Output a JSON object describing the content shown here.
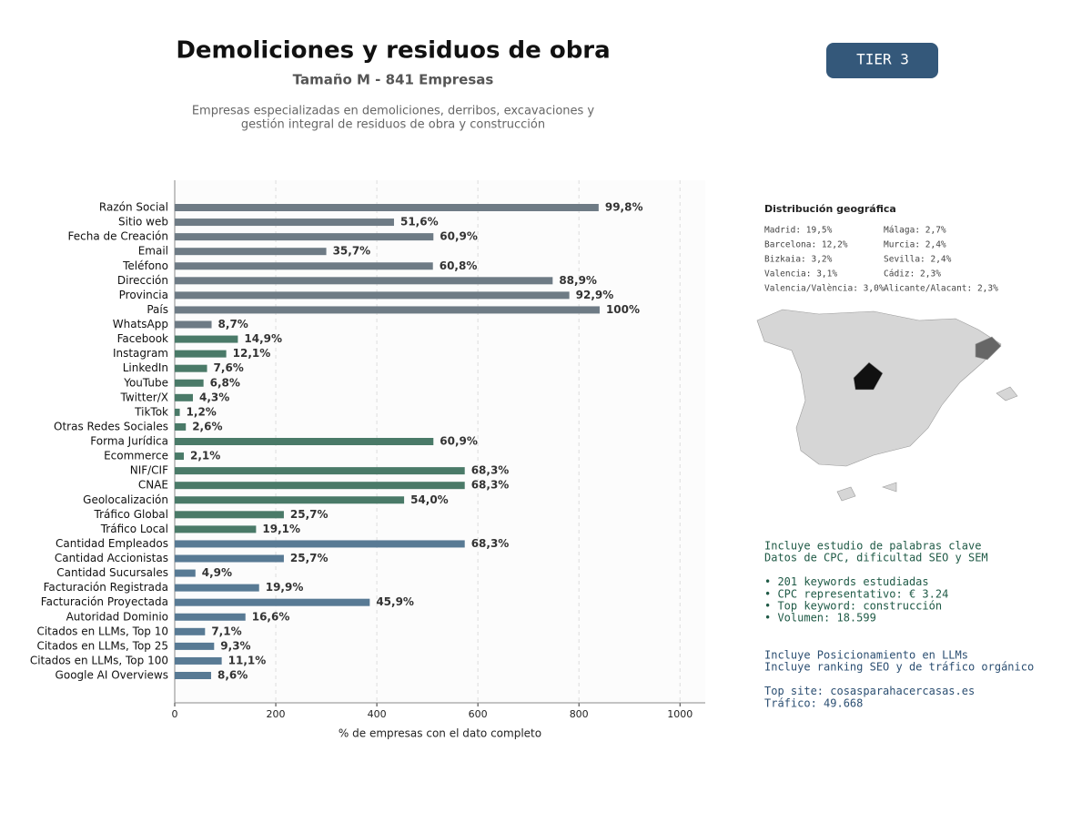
{
  "chart_data": {
    "type": "barh",
    "title": "Demoliciones y residuos de obra",
    "subtitle": "Tamaño M - 841 Empresas",
    "description": [
      "Empresas especializadas en demoliciones, derribos, excavaciones y",
      "gestión integral de residuos de obra y construcción"
    ],
    "badge": "TIER 3",
    "xlabel": "% de empresas con el dato completo",
    "xlim": [
      0,
      1050
    ],
    "xticks": [
      0,
      200,
      400,
      600,
      800,
      1000
    ],
    "grid": true,
    "categories": [
      "Razón Social",
      "Sitio web",
      "Fecha de Creación",
      "Email",
      "Teléfono",
      "Dirección",
      "Provincia",
      "País",
      "WhatsApp",
      "Facebook",
      "Instagram",
      "LinkedIn",
      "YouTube",
      "Twitter/X",
      "TikTok",
      "Otras Redes Sociales",
      "Forma Jurídica",
      "Ecommerce",
      "NIF/CIF",
      "CNAE",
      "Geolocalización",
      "Tráfico Global",
      "Tráfico Local",
      "Cantidad Empleados",
      "Cantidad Accionistas",
      "Cantidad Sucursales",
      "Facturación Registrada",
      "Facturación Proyectada",
      "Autoridad Dominio",
      "Citados en LLMs, Top 10",
      "Citados en LLMs, Top 25",
      "Citados en LLMs, Top 100",
      "Google AI Overviews"
    ],
    "values": [
      839,
      434,
      512,
      300,
      511,
      748,
      781,
      841,
      73,
      125,
      102,
      64,
      57,
      36,
      10,
      22,
      512,
      18,
      574,
      574,
      454,
      216,
      161,
      574,
      216,
      41,
      167,
      386,
      140,
      60,
      78,
      93,
      72
    ],
    "value_labels": [
      "99,8%",
      "51,6%",
      "60,9%",
      "35,7%",
      "60,8%",
      "88,9%",
      "92,9%",
      "100%",
      "8,7%",
      "14,9%",
      "12,1%",
      "7,6%",
      "6,8%",
      "4,3%",
      "1,2%",
      "2,6%",
      "60,9%",
      "2,1%",
      "68,3%",
      "68,3%",
      "54,0%",
      "25,7%",
      "19,1%",
      "68,3%",
      "25,7%",
      "4,9%",
      "19,9%",
      "45,9%",
      "16,6%",
      "7,1%",
      "9,3%",
      "11,1%",
      "8,6%"
    ],
    "colors": [
      "#6e7b85",
      "#6e7b85",
      "#6e7b85",
      "#6e7b85",
      "#6e7b85",
      "#6e7b85",
      "#6e7b85",
      "#6e7b85",
      "#6e7b85",
      "#4a7a68",
      "#4a7a68",
      "#4a7a68",
      "#4a7a68",
      "#4a7a68",
      "#4a7a68",
      "#4a7a68",
      "#4a7a68",
      "#4a7a68",
      "#4a7a68",
      "#4a7a68",
      "#4a7a68",
      "#4a7a68",
      "#4a7a68",
      "#587a94",
      "#587a94",
      "#587a94",
      "#587a94",
      "#587a94",
      "#587a94",
      "#587a94",
      "#587a94",
      "#587a94",
      "#587a94"
    ]
  },
  "sidebar": {
    "geo_title": "Distribución geográfica",
    "geo_left": [
      "Madrid: 19,5%",
      "Barcelona: 12,2%",
      "Bizkaia: 3,2%",
      "Valencia: 3,1%",
      "Valencia/València: 3,0%"
    ],
    "geo_right": [
      "Málaga: 2,7%",
      "Murcia: 2,4%",
      "Sevilla: 2,4%",
      "Cádiz: 2,3%",
      "Alicante/Alacant: 2,3%"
    ],
    "seo": [
      "Incluye estudio de palabras clave",
      "Datos de CPC, dificultad SEO y SEM",
      "",
      "• 201 keywords estudiadas",
      "• CPC representativo: € 3.24",
      "• Top keyword: construcción",
      "• Volumen: 18.599"
    ],
    "llm": [
      "Incluye Posicionamiento en LLMs",
      "Incluye ranking SEO y de tráfico orgánico",
      "",
      "Top site: cosasparahacercasas.es",
      "Tráfico: 49.668"
    ]
  }
}
